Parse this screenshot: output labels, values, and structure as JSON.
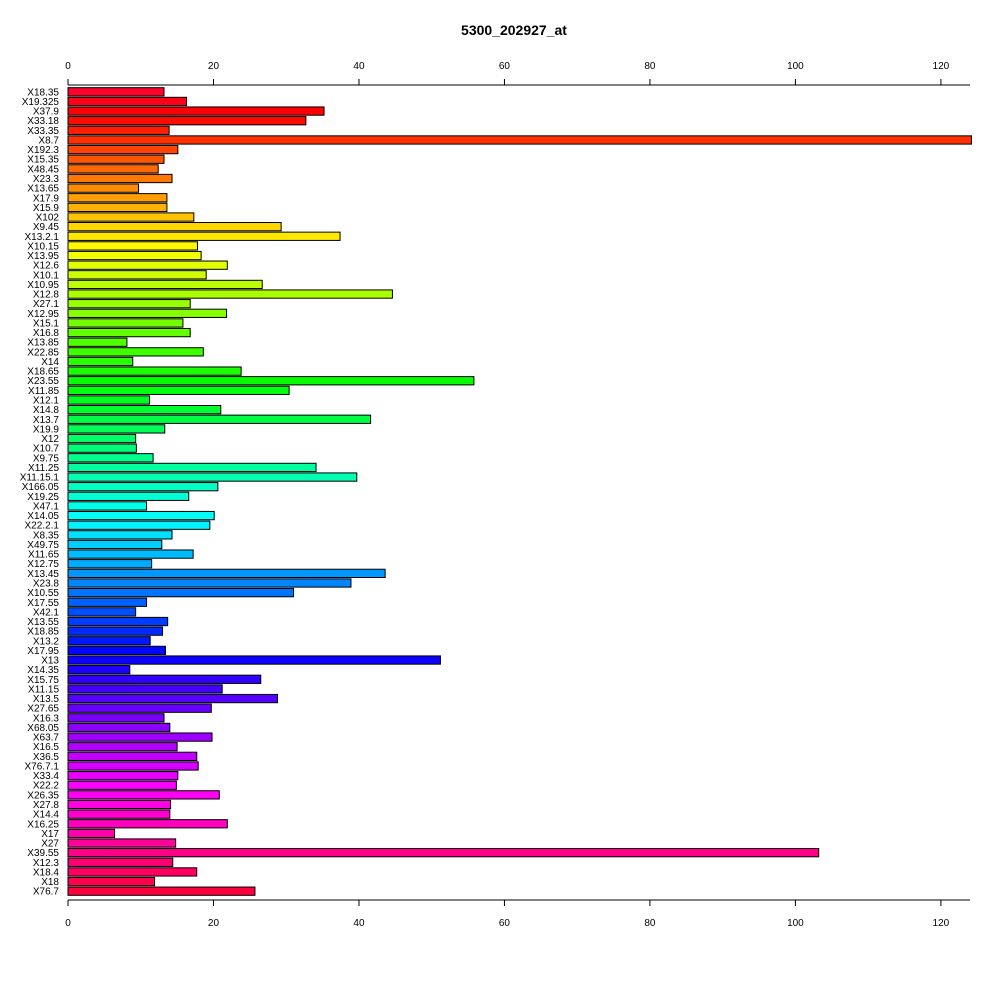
{
  "chart_data": {
    "type": "bar",
    "orientation": "horizontal",
    "title": "5300_202927_at",
    "xlabel": "",
    "ylabel": "",
    "xlim": [
      0,
      124
    ],
    "ticks": [
      0,
      20,
      40,
      60,
      80,
      100,
      120
    ],
    "grid": false,
    "legend": "none",
    "axes": [
      "top",
      "bottom"
    ],
    "color_scheme": "rainbow",
    "categories": [
      "X18.35",
      "X19.325",
      "X37.9",
      "X33.18",
      "X33.35",
      "X8.7",
      "X192.3",
      "X15.35",
      "X48.45",
      "X23.3",
      "X13.65",
      "X17.9",
      "X15.9",
      "X102",
      "X9.45",
      "X13.2.1",
      "X10.15",
      "X13.95",
      "X12.6",
      "X10.1",
      "X10.95",
      "X12.8",
      "X27.1",
      "X12.95",
      "X15.1",
      "X16.8",
      "X13.85",
      "X22.85",
      "X14",
      "X18.65",
      "X23.55",
      "X11.85",
      "X12.1",
      "X14.8",
      "X13.7",
      "X19.9",
      "X12",
      "X10.7",
      "X9.75",
      "X11.25",
      "X11.15.1",
      "X166.05",
      "X19.25",
      "X47.1",
      "X14.05",
      "X22.2.1",
      "X8.35",
      "X49.75",
      "X11.65",
      "X12.75",
      "X13.45",
      "X23.8",
      "X10.55",
      "X17.55",
      "X42.1",
      "X13.55",
      "X18.85",
      "X13.2",
      "X17.95",
      "X13",
      "X14.35",
      "X15.75",
      "X11.15",
      "X13.5",
      "X27.65",
      "X16.3",
      "X68.05",
      "X63.7",
      "X16.5",
      "X36.5",
      "X76.7.1",
      "X33.4",
      "X22.2",
      "X26.35",
      "X27.8",
      "X14.4",
      "X16.25",
      "X17",
      "X27",
      "X39.55",
      "X12.3",
      "X18.4",
      "X18",
      "X76.7"
    ],
    "values": [
      13.2,
      16.3,
      35.2,
      32.7,
      13.9,
      124.2,
      15.1,
      13.2,
      12.4,
      14.3,
      9.7,
      13.6,
      13.6,
      17.3,
      29.3,
      37.4,
      17.8,
      18.3,
      21.9,
      19.0,
      26.7,
      44.6,
      16.8,
      21.8,
      15.8,
      16.8,
      8.1,
      18.6,
      8.9,
      23.8,
      55.8,
      30.4,
      11.2,
      21.0,
      41.6,
      13.3,
      9.3,
      9.4,
      11.7,
      34.1,
      39.7,
      20.6,
      16.6,
      10.8,
      20.1,
      19.5,
      14.3,
      12.9,
      17.2,
      11.5,
      43.6,
      38.9,
      31.0,
      10.8,
      9.3,
      13.7,
      13.0,
      11.3,
      13.4,
      51.2,
      8.5,
      26.5,
      21.2,
      28.8,
      19.7,
      13.2,
      14.0,
      19.8,
      15.0,
      17.7,
      17.9,
      15.1,
      14.9,
      20.8,
      14.1,
      14.0,
      21.9,
      6.4,
      14.8,
      103.2,
      14.4,
      17.7,
      11.9,
      25.7
    ]
  }
}
